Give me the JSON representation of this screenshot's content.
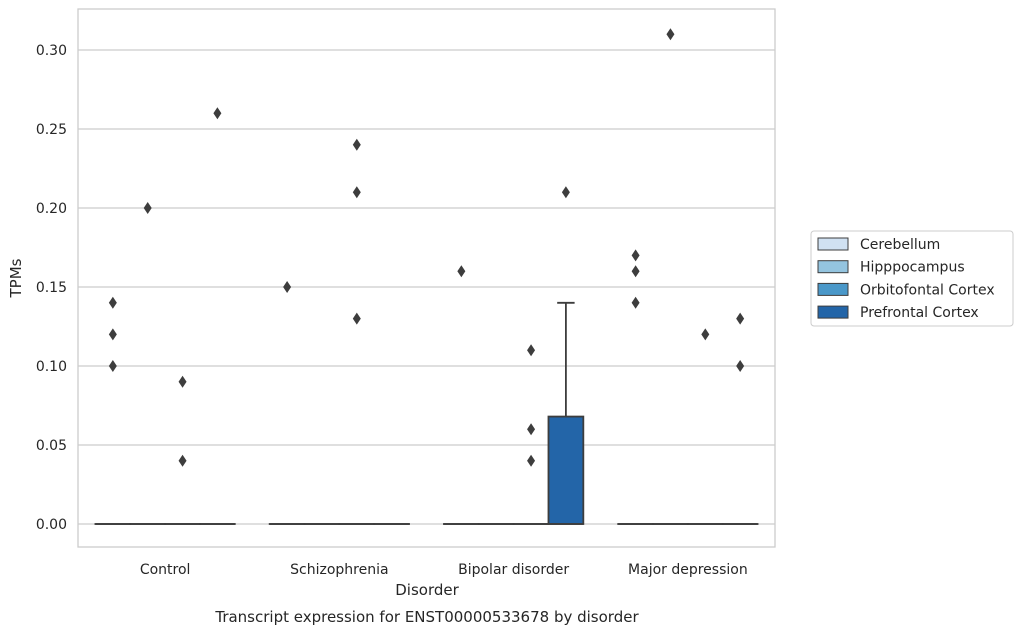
{
  "chart_data": {
    "type": "box",
    "xlabel": "Disorder",
    "ylabel": "TPMs",
    "caption": "Transcript expression for ENST00000533678 by disorder",
    "ylim": [
      -0.015,
      0.325
    ],
    "yticks": [
      0.0,
      0.05,
      0.1,
      0.15,
      0.2,
      0.25,
      0.3
    ],
    "ytick_labels": [
      "0.00",
      "0.05",
      "0.10",
      "0.15",
      "0.20",
      "0.25",
      "0.30"
    ],
    "grid": "horizontal",
    "legend_position": "right",
    "categories": [
      "Control",
      "Schizophrenia",
      "Bipolar disorder",
      "Major depression"
    ],
    "series": [
      {
        "name": "Cerebellum",
        "color": "#d0e1f2",
        "boxes": [
          {
            "q1": 0,
            "median": 0,
            "q3": 0,
            "whisker_low": 0,
            "whisker_high": 0,
            "outliers": [
              0.1,
              0.12,
              0.14
            ]
          },
          {
            "q1": 0,
            "median": 0,
            "q3": 0,
            "whisker_low": 0,
            "whisker_high": 0,
            "outliers": [
              0.15
            ]
          },
          {
            "q1": 0,
            "median": 0,
            "q3": 0,
            "whisker_low": 0,
            "whisker_high": 0,
            "outliers": [
              0.16
            ]
          },
          {
            "q1": 0,
            "median": 0,
            "q3": 0,
            "whisker_low": 0,
            "whisker_high": 0,
            "outliers": [
              0.14,
              0.16,
              0.17
            ]
          }
        ]
      },
      {
        "name": "Hipppocampus",
        "color": "#94c4df",
        "boxes": [
          {
            "q1": 0,
            "median": 0,
            "q3": 0,
            "whisker_low": 0,
            "whisker_high": 0,
            "outliers": [
              0.2
            ]
          },
          {
            "q1": 0,
            "median": 0,
            "q3": 0,
            "whisker_low": 0,
            "whisker_high": 0,
            "outliers": []
          },
          {
            "q1": 0,
            "median": 0,
            "q3": 0,
            "whisker_low": 0,
            "whisker_high": 0,
            "outliers": []
          },
          {
            "q1": 0,
            "median": 0,
            "q3": 0,
            "whisker_low": 0,
            "whisker_high": 0,
            "outliers": [
              0.31
            ]
          }
        ]
      },
      {
        "name": "Orbitofontal Cortex",
        "color": "#4a98c9",
        "boxes": [
          {
            "q1": 0,
            "median": 0,
            "q3": 0,
            "whisker_low": 0,
            "whisker_high": 0,
            "outliers": [
              0.04,
              0.09
            ]
          },
          {
            "q1": 0,
            "median": 0,
            "q3": 0,
            "whisker_low": 0,
            "whisker_high": 0,
            "outliers": [
              0.13,
              0.21,
              0.24
            ]
          },
          {
            "q1": 0,
            "median": 0,
            "q3": 0,
            "whisker_low": 0,
            "whisker_high": 0,
            "outliers": [
              0.04,
              0.06,
              0.11
            ]
          },
          {
            "q1": 0,
            "median": 0,
            "q3": 0,
            "whisker_low": 0,
            "whisker_high": 0,
            "outliers": [
              0.12
            ]
          }
        ]
      },
      {
        "name": "Prefrontal Cortex",
        "color": "#2365a8",
        "boxes": [
          {
            "q1": 0,
            "median": 0,
            "q3": 0,
            "whisker_low": 0,
            "whisker_high": 0,
            "outliers": [
              0.26
            ]
          },
          {
            "q1": 0,
            "median": 0,
            "q3": 0,
            "whisker_low": 0,
            "whisker_high": 0,
            "outliers": []
          },
          {
            "q1": 0,
            "median": 0,
            "q3": 0.068,
            "whisker_low": 0,
            "whisker_high": 0.14,
            "outliers": [
              0.21
            ]
          },
          {
            "q1": 0,
            "median": 0,
            "q3": 0,
            "whisker_low": 0,
            "whisker_high": 0,
            "outliers": [
              0.1,
              0.13
            ]
          }
        ]
      }
    ]
  }
}
